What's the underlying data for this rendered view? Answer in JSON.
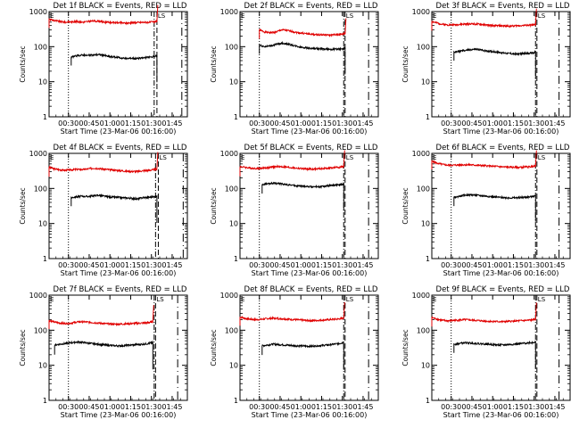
{
  "colors": {
    "events": "#000000",
    "lld": "#e00000",
    "axis": "#000000",
    "background": "#ffffff"
  },
  "common": {
    "xlabel": "Start Time (23-Mar-06 00:16:00)",
    "ylabel": "Counts/sec",
    "yscale": "log",
    "ylim": [
      1,
      1000
    ],
    "ytick_values": [
      1,
      10,
      100,
      1000
    ],
    "ytick_labels": [
      "1",
      "10",
      "100",
      "1000"
    ],
    "xlim_minutes": [
      0,
      100
    ],
    "xtick_minutes": [
      14,
      29,
      44,
      59,
      74,
      89
    ],
    "xtick_labels": [
      "00:30",
      "00:45",
      "01:00",
      "01:15",
      "01:30",
      "01:45"
    ],
    "corner_label_left": "E",
    "corner_label_right": "LS"
  },
  "chart_data": [
    {
      "type": "line",
      "yscale": "log",
      "title": "Det 1f BLACK = Events, RED = LLD",
      "xlabel": "Start Time (23-Mar-06 00:16:00)",
      "ylabel": "Counts/sec",
      "x_minutes": [
        0,
        4,
        8,
        12,
        16,
        20,
        24,
        28,
        32,
        36,
        40,
        44,
        48,
        52,
        56,
        60,
        64,
        68,
        72,
        76,
        78
      ],
      "series": [
        {
          "name": "LLD",
          "color": "#e00000",
          "values": [
            600,
            560,
            520,
            500,
            510,
            520,
            500,
            520,
            540,
            530,
            500,
            490,
            485,
            480,
            470,
            480,
            490,
            495,
            500,
            510,
            525
          ]
        },
        {
          "name": "Events",
          "start_minute": 14,
          "values": [
            null,
            null,
            null,
            null,
            50,
            55,
            58,
            56,
            58,
            60,
            56,
            52,
            50,
            48,
            46,
            47,
            46,
            48,
            50,
            52,
            55
          ]
        }
      ],
      "vlines_minutes": {
        "dotted": 14,
        "dashdot": 76,
        "dashed": 78,
        "long_dashed": 96
      }
    },
    {
      "type": "line",
      "yscale": "log",
      "title": "Det 2f BLACK = Events, RED = LLD",
      "xlabel": "Start Time (23-Mar-06 00:16:00)",
      "ylabel": "Counts/sec",
      "x_minutes": [
        14,
        18,
        22,
        26,
        30,
        34,
        38,
        42,
        46,
        50,
        54,
        58,
        62,
        66,
        70,
        74,
        76
      ],
      "series": [
        {
          "name": "LLD",
          "color": "#e00000",
          "values": [
            300,
            260,
            250,
            260,
            300,
            290,
            270,
            250,
            240,
            230,
            220,
            220,
            215,
            215,
            220,
            225,
            235
          ]
        },
        {
          "name": "Events",
          "values": [
            110,
            100,
            105,
            115,
            125,
            120,
            110,
            100,
            95,
            90,
            88,
            86,
            85,
            84,
            85,
            86,
            90
          ]
        }
      ],
      "vlines_minutes": {
        "dotted": 14,
        "dashdot": 75,
        "dashed": 76,
        "long_dashed": 93
      }
    },
    {
      "type": "line",
      "yscale": "log",
      "title": "Det 3f BLACK = Events, RED = LLD",
      "xlabel": "Start Time (23-Mar-06 00:16:00)",
      "ylabel": "Counts/sec",
      "x_minutes": [
        0,
        4,
        8,
        12,
        16,
        20,
        24,
        28,
        32,
        36,
        40,
        44,
        48,
        52,
        56,
        60,
        64,
        68,
        72,
        75
      ],
      "series": [
        {
          "name": "LLD",
          "color": "#e00000",
          "values": [
            520,
            470,
            430,
            420,
            420,
            430,
            440,
            450,
            440,
            430,
            410,
            400,
            395,
            390,
            385,
            390,
            400,
            405,
            410,
            420
          ]
        },
        {
          "name": "Events",
          "values": [
            null,
            null,
            null,
            null,
            70,
            74,
            78,
            82,
            84,
            80,
            76,
            72,
            70,
            66,
            64,
            62,
            63,
            64,
            66,
            70
          ]
        }
      ],
      "vlines_minutes": {
        "dotted": 14,
        "dashdot": 75,
        "dashed": 76,
        "long_dashed": 92
      }
    },
    {
      "type": "line",
      "yscale": "log",
      "title": "Det 4f BLACK = Events, RED = LLD",
      "xlabel": "Start Time (23-Mar-06 00:16:00)",
      "ylabel": "Counts/sec",
      "x_minutes": [
        0,
        4,
        8,
        12,
        16,
        20,
        24,
        28,
        32,
        36,
        40,
        44,
        48,
        52,
        56,
        60,
        64,
        68,
        72,
        76,
        78
      ],
      "series": [
        {
          "name": "LLD",
          "color": "#e00000",
          "values": [
            400,
            360,
            340,
            330,
            340,
            350,
            345,
            360,
            380,
            370,
            355,
            340,
            330,
            320,
            310,
            305,
            305,
            320,
            330,
            340,
            360
          ]
        },
        {
          "name": "Events",
          "values": [
            null,
            null,
            null,
            null,
            55,
            58,
            60,
            59,
            62,
            64,
            60,
            57,
            56,
            55,
            54,
            52,
            50,
            55,
            56,
            58,
            62
          ]
        }
      ],
      "vlines_minutes": {
        "dotted": 14,
        "dashdot": 77,
        "dashed": 79,
        "long_dashed": 97
      }
    },
    {
      "type": "line",
      "yscale": "log",
      "title": "Det 5f BLACK = Events, RED = LLD",
      "xlabel": "Start Time (23-Mar-06 00:16:00)",
      "ylabel": "Counts/sec",
      "x_minutes": [
        0,
        4,
        8,
        12,
        16,
        20,
        24,
        28,
        32,
        36,
        40,
        44,
        48,
        52,
        56,
        60,
        64,
        68,
        72,
        75
      ],
      "series": [
        {
          "name": "LLD",
          "color": "#e00000",
          "values": [
            420,
            400,
            380,
            370,
            380,
            390,
            410,
            420,
            410,
            395,
            380,
            370,
            360,
            355,
            360,
            370,
            380,
            390,
            400,
            420
          ]
        },
        {
          "name": "Events",
          "values": [
            null,
            null,
            null,
            null,
            130,
            135,
            140,
            138,
            132,
            126,
            120,
            116,
            114,
            112,
            112,
            114,
            118,
            122,
            128,
            135
          ]
        }
      ],
      "vlines_minutes": {
        "dotted": 14,
        "dashdot": 75,
        "dashed": 76,
        "long_dashed": 93
      }
    },
    {
      "type": "line",
      "yscale": "log",
      "title": "Det 6f BLACK = Events, RED = LLD",
      "xlabel": "Start Time (23-Mar-06 00:16:00)",
      "ylabel": "Counts/sec",
      "x_minutes": [
        0,
        4,
        8,
        12,
        16,
        20,
        24,
        28,
        32,
        36,
        40,
        44,
        48,
        52,
        56,
        60,
        64,
        68,
        72,
        75
      ],
      "series": [
        {
          "name": "LLD",
          "color": "#e00000",
          "values": [
            600,
            520,
            480,
            460,
            460,
            470,
            475,
            470,
            460,
            450,
            440,
            430,
            420,
            410,
            405,
            400,
            400,
            410,
            420,
            440
          ]
        },
        {
          "name": "Events",
          "values": [
            null,
            null,
            null,
            null,
            55,
            60,
            64,
            66,
            64,
            62,
            60,
            58,
            56,
            55,
            54,
            54,
            55,
            56,
            58,
            62
          ]
        }
      ],
      "vlines_minutes": {
        "dotted": 14,
        "dashdot": 75,
        "dashed": 76,
        "long_dashed": 92
      }
    },
    {
      "type": "line",
      "yscale": "log",
      "title": "Det 7f BLACK = Events, RED = LLD",
      "xlabel": "Start Time (23-Mar-06 00:16:00)",
      "ylabel": "Counts/sec",
      "x_minutes": [
        0,
        4,
        8,
        12,
        16,
        20,
        24,
        28,
        32,
        36,
        40,
        44,
        48,
        52,
        56,
        60,
        64,
        68,
        72,
        75
      ],
      "series": [
        {
          "name": "LLD",
          "color": "#e00000",
          "values": [
            190,
            170,
            160,
            155,
            160,
            170,
            175,
            170,
            165,
            160,
            155,
            150,
            148,
            150,
            152,
            155,
            158,
            160,
            165,
            175
          ]
        },
        {
          "name": "Events",
          "values": [
            null,
            38,
            40,
            42,
            44,
            46,
            45,
            43,
            41,
            40,
            38,
            37,
            36,
            36,
            37,
            38,
            39,
            40,
            42,
            45
          ]
        }
      ],
      "vlines_minutes": {
        "dotted": 14,
        "dashdot": 76,
        "dashed": 77,
        "long_dashed": 93
      }
    },
    {
      "type": "line",
      "yscale": "log",
      "title": "Det 8f BLACK = Events, RED = LLD",
      "xlabel": "Start Time (23-Mar-06 00:16:00)",
      "ylabel": "Counts/sec",
      "x_minutes": [
        0,
        4,
        8,
        12,
        16,
        20,
        24,
        28,
        32,
        36,
        40,
        44,
        48,
        52,
        56,
        60,
        64,
        68,
        72,
        75
      ],
      "series": [
        {
          "name": "LLD",
          "color": "#e00000",
          "values": [
            240,
            215,
            205,
            200,
            205,
            215,
            220,
            215,
            210,
            205,
            200,
            195,
            190,
            188,
            190,
            195,
            200,
            205,
            210,
            225
          ]
        },
        {
          "name": "Events",
          "values": [
            null,
            null,
            null,
            null,
            36,
            38,
            40,
            39,
            38,
            37,
            36,
            36,
            35,
            35,
            36,
            37,
            38,
            40,
            42,
            45
          ]
        }
      ],
      "vlines_minutes": {
        "dotted": 14,
        "dashdot": 75,
        "dashed": 76,
        "long_dashed": 93
      }
    },
    {
      "type": "line",
      "yscale": "log",
      "title": "Det 9f BLACK = Events, RED = LLD",
      "xlabel": "Start Time (23-Mar-06 00:16:00)",
      "ylabel": "Counts/sec",
      "x_minutes": [
        0,
        4,
        8,
        12,
        16,
        20,
        24,
        28,
        32,
        36,
        40,
        44,
        48,
        52,
        56,
        60,
        64,
        68,
        72,
        75
      ],
      "series": [
        {
          "name": "LLD",
          "color": "#e00000",
          "values": [
            230,
            205,
            190,
            185,
            190,
            195,
            200,
            195,
            190,
            185,
            180,
            178,
            176,
            175,
            178,
            182,
            186,
            190,
            195,
            205
          ]
        },
        {
          "name": "Events",
          "values": [
            null,
            null,
            null,
            null,
            40,
            42,
            44,
            43,
            42,
            41,
            40,
            39,
            38,
            38,
            39,
            40,
            41,
            43,
            44,
            46
          ]
        }
      ],
      "vlines_minutes": {
        "dotted": 14,
        "dashdot": 75,
        "dashed": 76,
        "long_dashed": 92
      }
    }
  ]
}
